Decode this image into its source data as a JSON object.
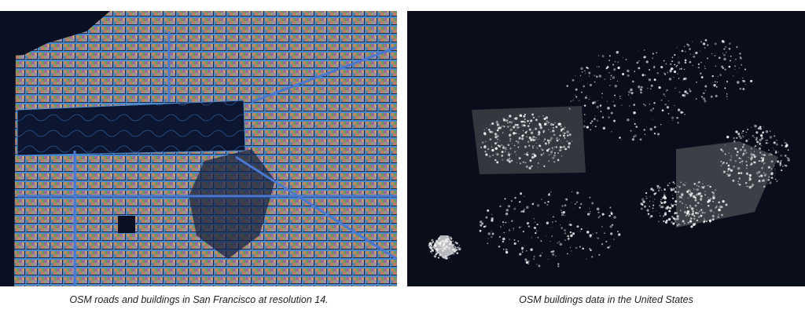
{
  "figures": [
    {
      "caption": "OSM roads and buildings in San Francisco at resolution 14."
    },
    {
      "caption": "OSM buildings data in the United States"
    }
  ]
}
